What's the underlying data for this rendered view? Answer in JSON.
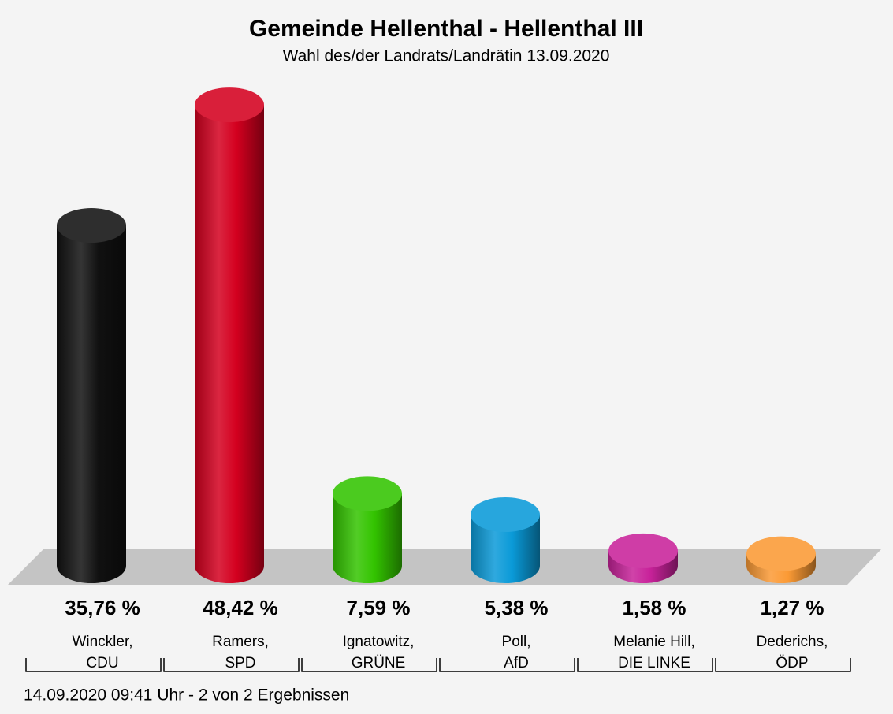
{
  "chart_data": {
    "type": "bar3d",
    "title": "Gemeinde Hellenthal - Hellenthal III",
    "subtitle": "Wahl des/der Landrats/Landrätin 13.09.2020",
    "categories": [
      [
        "Winckler,",
        "CDU"
      ],
      [
        "Ramers,",
        "SPD"
      ],
      [
        "Ignatowitz,",
        "GRÜNE"
      ],
      [
        "Poll,",
        "AfD"
      ],
      [
        "Melanie Hill,",
        "DIE LINKE"
      ],
      [
        "Dederichs,",
        "ÖDP"
      ]
    ],
    "values": [
      35.76,
      48.42,
      7.59,
      5.38,
      1.58,
      1.27
    ],
    "value_labels": [
      "35,76 %",
      "48,42 %",
      "7,59 %",
      "5,38 %",
      "1,58 %",
      "1,27 %"
    ],
    "colors": [
      "#111111",
      "#d4001f",
      "#33c400",
      "#0a9ad8",
      "#c8229a",
      "#fb9a35"
    ],
    "footer": "14.09.2020 09:41 Uhr - 2 von 2 Ergebnissen"
  }
}
